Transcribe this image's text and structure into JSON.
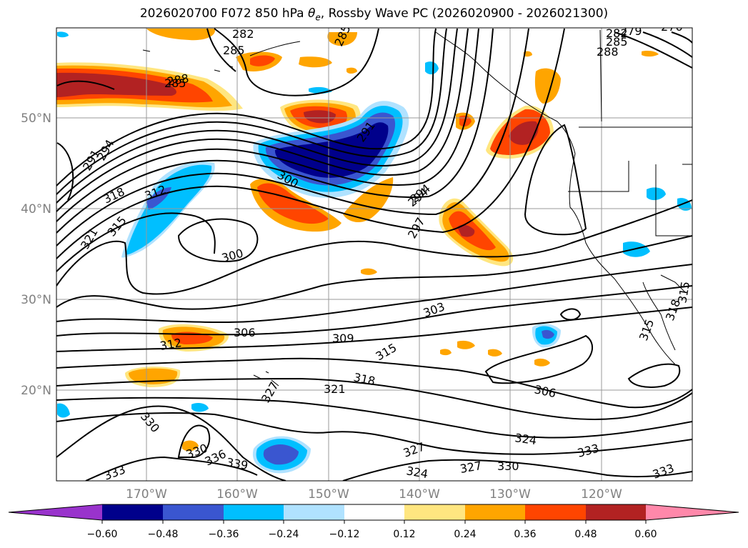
{
  "figure": {
    "title_prefix": "2026020700 F072 850 hPa ",
    "title_suffix": ", Rossby Wave PC (2026020900 - 2026021300)",
    "theta_symbol": "θ",
    "theta_subscript": "e",
    "line_color": "#000000"
  },
  "map": {
    "lat_labels": [
      "50°N",
      "40°N",
      "30°N",
      "20°N"
    ],
    "lon_labels": [
      "170°W",
      "160°W",
      "150°W",
      "140°W",
      "130°W",
      "120°W"
    ],
    "contour_labels": [
      "282",
      "285",
      "285",
      "288",
      "285",
      "282",
      "279",
      "276",
      "288",
      "285",
      "291",
      "294",
      "291",
      "294",
      "300",
      "294",
      "297",
      "318",
      "312",
      "315",
      "321",
      "300",
      "303",
      "306",
      "309",
      "312",
      "315",
      "318",
      "321",
      "327",
      "306",
      "330",
      "330",
      "336",
      "339",
      "333",
      "327",
      "324",
      "327",
      "330",
      "333",
      "324",
      "333",
      "315",
      "318",
      "315"
    ]
  },
  "colorbar": {
    "ticks": [
      "−0.60",
      "−0.48",
      "−0.36",
      "−0.24",
      "−0.12",
      "0.12",
      "0.24",
      "0.36",
      "0.48",
      "0.60"
    ],
    "colors": [
      "#9933cc",
      "#00008b",
      "#3a56d0",
      "#00bfff",
      "#b0e2ff",
      "#ffffff",
      "#ffe680",
      "#ffa500",
      "#ff4500",
      "#b22222",
      "#ff88aa"
    ]
  }
}
